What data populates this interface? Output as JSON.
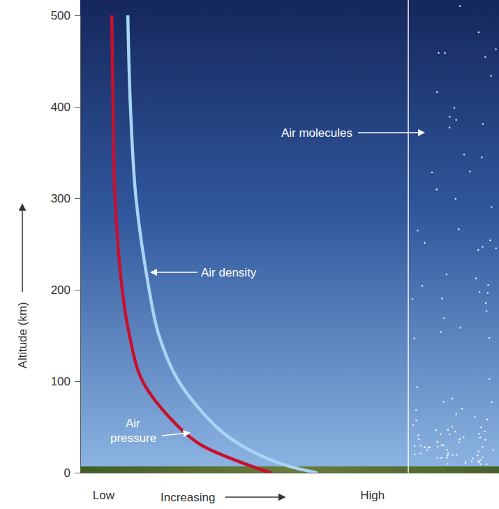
{
  "chart_data": {
    "type": "line",
    "ylabel": "Altitude (km)",
    "xlabel": "Increasing",
    "ylim": [
      0,
      500
    ],
    "yticks": [
      0,
      100,
      200,
      300,
      400,
      500
    ],
    "xlim": [
      0,
      1
    ],
    "xticks": [
      {
        "value": 0.07,
        "label": "Low"
      },
      {
        "value": 0.89,
        "label": "High"
      }
    ],
    "series": [
      {
        "name": "Air pressure",
        "color": "#c8102e",
        "x": [
          0.58,
          0.5,
          0.37,
          0.3,
          0.19,
          0.15,
          0.128,
          0.106,
          0.1,
          0.096
        ],
        "values": [
          0,
          10,
          30,
          50,
          100,
          150,
          200,
          300,
          400,
          500
        ]
      },
      {
        "name": "Air density",
        "color": "#a8d4f5",
        "x": [
          0.72,
          0.61,
          0.49,
          0.415,
          0.3,
          0.24,
          0.21,
          0.17,
          0.153,
          0.145
        ],
        "values": [
          0,
          10,
          30,
          50,
          100,
          150,
          200,
          300,
          400,
          500
        ]
      }
    ],
    "annotations": [
      "Air molecules"
    ]
  }
}
